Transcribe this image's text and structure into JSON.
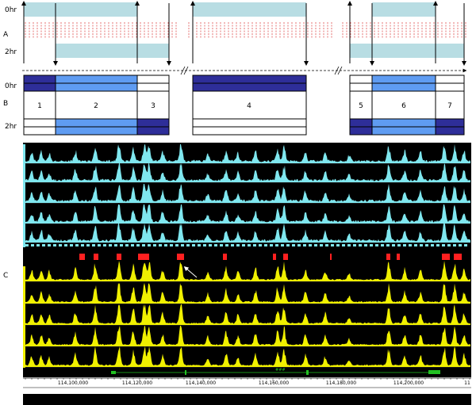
{
  "panel_a": {
    "letter": "A",
    "label_top": "0hr",
    "label_bottom": "2hr",
    "colors": {
      "band": "#b8dde3",
      "tick": "#e05050",
      "line": "#000000"
    }
  },
  "panel_b": {
    "letter": "B",
    "label_top": "0hr",
    "label_bottom": "2hr",
    "box_numbers": [
      "1",
      "2",
      "3",
      "4",
      "5",
      "6",
      "7"
    ],
    "colors": {
      "dark": "#2e2e99",
      "light": "#5f9cf2",
      "line": "#000000"
    }
  },
  "panel_c": {
    "letter": "C",
    "axis_ticks": [
      "114,100,000",
      "114,120,000",
      "114,140,000",
      "114,160,000",
      "114,180,000",
      "114,200,000",
      "11"
    ],
    "gene_label": "###",
    "colors": {
      "track_bg": "#000000",
      "cyan": "#7fe7ef",
      "yellow": "#f0f000",
      "peak": "#ff2020",
      "gene": "#22c022",
      "arrow": "#ffffff"
    }
  }
}
